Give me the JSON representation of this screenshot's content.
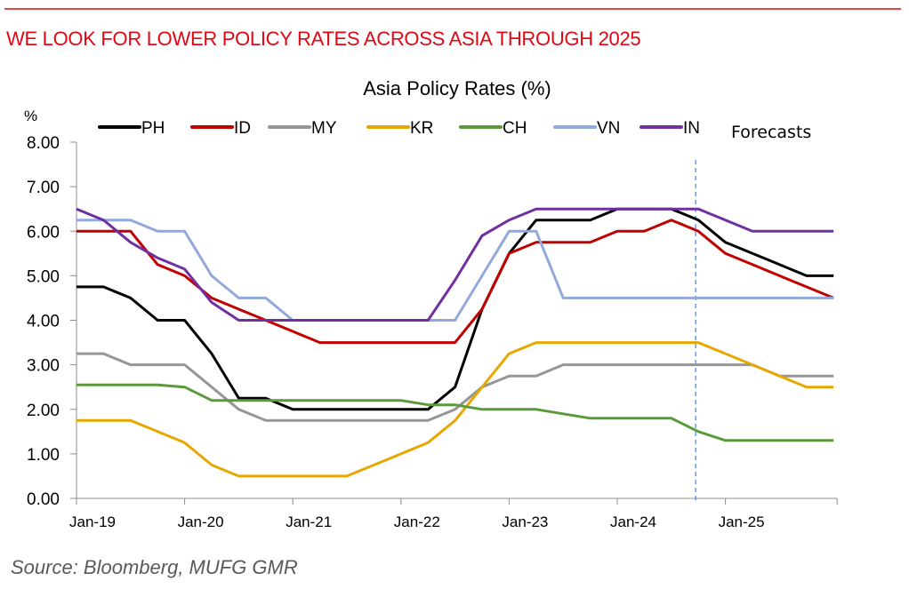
{
  "headline": "WE LOOK FOR LOWER POLICY RATES ACROSS ASIA THROUGH 2025",
  "source": "Source: Bloomberg, MUFG GMR",
  "chart_data": {
    "type": "line",
    "title": "Asia  Policy Rates (%)",
    "ylabel": "%",
    "xlabel": "",
    "ylim": [
      0,
      8
    ],
    "yticks": [
      "0.00",
      "1.00",
      "2.00",
      "3.00",
      "4.00",
      "5.00",
      "6.00",
      "7.00",
      "8.00"
    ],
    "xtick_labels": [
      "Jan-19",
      "Jan-20",
      "Jan-21",
      "Jan-22",
      "Jan-23",
      "Jan-24",
      "Jan-25"
    ],
    "x_frequency": "quarterly",
    "x_start": "Jan-19",
    "x": [
      "Q1-19",
      "Q2-19",
      "Q3-19",
      "Q4-19",
      "Q1-20",
      "Q2-20",
      "Q3-20",
      "Q4-20",
      "Q1-21",
      "Q2-21",
      "Q3-21",
      "Q4-21",
      "Q1-22",
      "Q2-22",
      "Q3-22",
      "Q4-22",
      "Q1-23",
      "Q2-23",
      "Q3-23",
      "Q4-23",
      "Q1-24",
      "Q2-24",
      "Q3-24",
      "Q4-24",
      "Q1-25",
      "Q2-25",
      "Q3-25",
      "Q4-25",
      "Q1-26"
    ],
    "grid": false,
    "legend_position": "top",
    "annotation": "Forecasts",
    "forecast_start_index": 22.9,
    "series": [
      {
        "name": "PH",
        "color": "#000000",
        "values": [
          4.75,
          4.75,
          4.5,
          4.0,
          4.0,
          3.25,
          2.25,
          2.25,
          2.0,
          2.0,
          2.0,
          2.0,
          2.0,
          2.0,
          2.5,
          4.25,
          5.5,
          6.25,
          6.25,
          6.25,
          6.5,
          6.5,
          6.5,
          6.25,
          5.75,
          5.5,
          5.25,
          5.0,
          5.0
        ]
      },
      {
        "name": "ID",
        "color": "#c00000",
        "values": [
          6.0,
          6.0,
          6.0,
          5.25,
          5.0,
          4.5,
          4.25,
          4.0,
          3.75,
          3.5,
          3.5,
          3.5,
          3.5,
          3.5,
          3.5,
          4.25,
          5.5,
          5.75,
          5.75,
          5.75,
          6.0,
          6.0,
          6.25,
          6.0,
          5.5,
          5.25,
          5.0,
          4.75,
          4.5
        ]
      },
      {
        "name": "MY",
        "color": "#969696",
        "values": [
          3.25,
          3.25,
          3.0,
          3.0,
          3.0,
          2.5,
          2.0,
          1.75,
          1.75,
          1.75,
          1.75,
          1.75,
          1.75,
          1.75,
          2.0,
          2.5,
          2.75,
          2.75,
          3.0,
          3.0,
          3.0,
          3.0,
          3.0,
          3.0,
          3.0,
          3.0,
          2.75,
          2.75,
          2.75
        ]
      },
      {
        "name": "KR",
        "color": "#e6a800",
        "values": [
          1.75,
          1.75,
          1.75,
          1.5,
          1.25,
          0.75,
          0.5,
          0.5,
          0.5,
          0.5,
          0.5,
          0.75,
          1.0,
          1.25,
          1.75,
          2.5,
          3.25,
          3.5,
          3.5,
          3.5,
          3.5,
          3.5,
          3.5,
          3.5,
          3.25,
          3.0,
          2.75,
          2.5,
          2.5
        ]
      },
      {
        "name": "CH",
        "color": "#5b9a3c",
        "values": [
          2.55,
          2.55,
          2.55,
          2.55,
          2.5,
          2.2,
          2.2,
          2.2,
          2.2,
          2.2,
          2.2,
          2.2,
          2.2,
          2.1,
          2.1,
          2.0,
          2.0,
          2.0,
          1.9,
          1.8,
          1.8,
          1.8,
          1.8,
          1.5,
          1.3,
          1.3,
          1.3,
          1.3,
          1.3
        ]
      },
      {
        "name": "VN",
        "color": "#92a9dc",
        "values": [
          6.25,
          6.25,
          6.25,
          6.0,
          6.0,
          5.0,
          4.5,
          4.5,
          4.0,
          4.0,
          4.0,
          4.0,
          4.0,
          4.0,
          4.0,
          5.0,
          6.0,
          6.0,
          4.5,
          4.5,
          4.5,
          4.5,
          4.5,
          4.5,
          4.5,
          4.5,
          4.5,
          4.5,
          4.5
        ]
      },
      {
        "name": "IN",
        "color": "#7030a0",
        "values": [
          6.5,
          6.25,
          5.75,
          5.4,
          5.15,
          4.4,
          4.0,
          4.0,
          4.0,
          4.0,
          4.0,
          4.0,
          4.0,
          4.0,
          4.9,
          5.9,
          6.25,
          6.5,
          6.5,
          6.5,
          6.5,
          6.5,
          6.5,
          6.5,
          6.25,
          6.0,
          6.0,
          6.0,
          6.0
        ]
      }
    ]
  }
}
